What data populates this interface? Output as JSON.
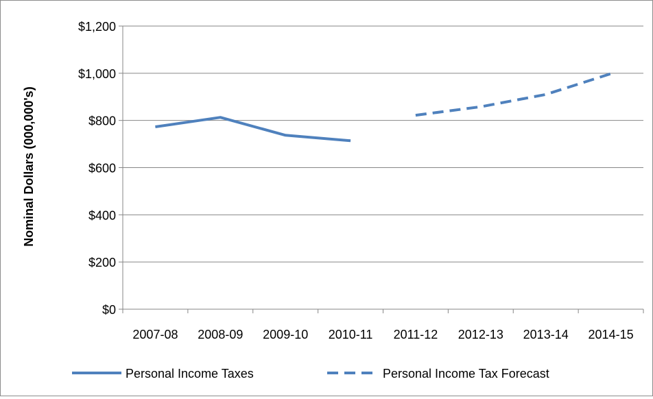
{
  "chart_data": {
    "type": "line",
    "ylabel": "Nominal Dollars (000,000's)",
    "categories": [
      "2007-08",
      "2008-09",
      "2009-10",
      "2010-11",
      "2011-12",
      "2012-13",
      "2013-14",
      "2014-15"
    ],
    "ylim": [
      0,
      1200
    ],
    "yticks": [
      0,
      200,
      400,
      600,
      800,
      1000,
      1200
    ],
    "ytick_labels": [
      "$0",
      "$200",
      "$400",
      "$600",
      "$800",
      "$1,000",
      "$1,200"
    ],
    "grid": true,
    "legend_position": "bottom",
    "series": [
      {
        "name": "Personal Income Taxes",
        "style": "solid",
        "color": "#4f81bd",
        "values": [
          773,
          813,
          737,
          714,
          null,
          null,
          null,
          null
        ]
      },
      {
        "name": "Personal Income Tax Forecast",
        "style": "dashed",
        "color": "#4f81bd",
        "values": [
          null,
          null,
          null,
          null,
          822,
          858,
          910,
          998
        ]
      }
    ]
  }
}
